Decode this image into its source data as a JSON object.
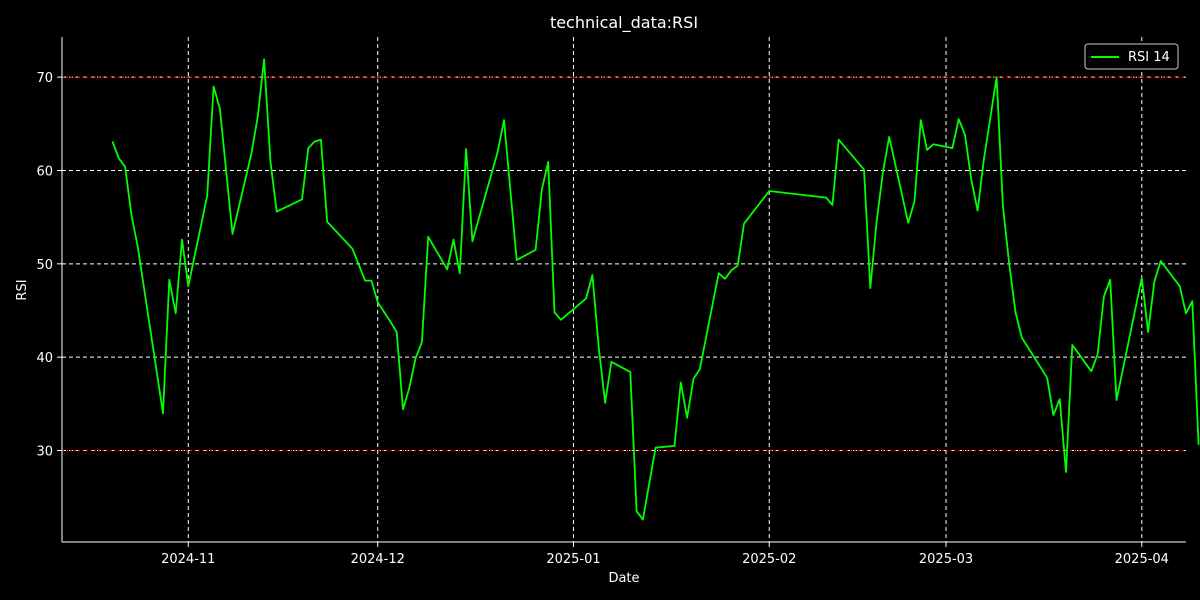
{
  "chart_data": {
    "type": "line",
    "title": "technical_data:RSI",
    "xlabel": "Date",
    "ylabel": "RSI",
    "xlim": [
      "2024-10-12",
      "2025-04-08"
    ],
    "ylim": [
      20.2,
      74.3
    ],
    "grid": true,
    "legend": {
      "placement": "top-right",
      "entries": [
        "RSI 14"
      ]
    },
    "x_ticks": [
      {
        "date": "2024-11-01",
        "label": "2024-11"
      },
      {
        "date": "2024-12-01",
        "label": "2024-12"
      },
      {
        "date": "2025-01-01",
        "label": "2025-01"
      },
      {
        "date": "2025-02-01",
        "label": "2025-02"
      },
      {
        "date": "2025-03-01",
        "label": "2025-03"
      },
      {
        "date": "2025-04-01",
        "label": "2025-04"
      }
    ],
    "y_ticks": [
      30,
      40,
      50,
      60,
      70
    ],
    "reference_lines": [
      {
        "value": 70,
        "color": "#ff0000",
        "style": "dotted"
      },
      {
        "value": 30,
        "color": "#ff0000",
        "style": "dotted"
      }
    ],
    "colors": {
      "background": "#000000",
      "line": "#00ff00",
      "grid": "#ffffff",
      "text": "#ffffff"
    },
    "series": [
      {
        "name": "RSI 14",
        "points": [
          [
            "2024-10-20",
            63.1
          ],
          [
            "2024-10-21",
            61.3
          ],
          [
            "2024-10-22",
            60.4
          ],
          [
            "2024-10-23",
            55.2
          ],
          [
            "2024-10-24",
            51.8
          ],
          [
            "2024-10-28",
            34.0
          ],
          [
            "2024-10-29",
            48.3
          ],
          [
            "2024-10-30",
            44.7
          ],
          [
            "2024-10-31",
            52.6
          ],
          [
            "2024-11-01",
            47.6
          ],
          [
            "2024-11-04",
            57.3
          ],
          [
            "2024-11-05",
            69.0
          ],
          [
            "2024-11-06",
            66.6
          ],
          [
            "2024-11-08",
            53.2
          ],
          [
            "2024-11-11",
            61.8
          ],
          [
            "2024-11-12",
            65.8
          ],
          [
            "2024-11-13",
            71.9
          ],
          [
            "2024-11-14",
            61.0
          ],
          [
            "2024-11-15",
            55.6
          ],
          [
            "2024-11-19",
            56.9
          ],
          [
            "2024-11-20",
            62.4
          ],
          [
            "2024-11-21",
            63.1
          ],
          [
            "2024-11-22",
            63.3
          ],
          [
            "2024-11-23",
            54.5
          ],
          [
            "2024-11-27",
            51.6
          ],
          [
            "2024-11-29",
            48.2
          ],
          [
            "2024-11-30",
            48.2
          ],
          [
            "2024-12-01",
            45.9
          ],
          [
            "2024-12-03",
            43.8
          ],
          [
            "2024-12-04",
            42.7
          ],
          [
            "2024-12-05",
            34.4
          ],
          [
            "2024-12-06",
            36.7
          ],
          [
            "2024-12-07",
            39.9
          ],
          [
            "2024-12-08",
            41.6
          ],
          [
            "2024-12-09",
            52.9
          ],
          [
            "2024-12-12",
            49.4
          ],
          [
            "2024-12-13",
            52.6
          ],
          [
            "2024-12-14",
            49.0
          ],
          [
            "2024-12-15",
            62.3
          ],
          [
            "2024-12-16",
            52.4
          ],
          [
            "2024-12-20",
            62.0
          ],
          [
            "2024-12-21",
            65.4
          ],
          [
            "2024-12-23",
            50.4
          ],
          [
            "2024-12-26",
            51.5
          ],
          [
            "2024-12-27",
            58.0
          ],
          [
            "2024-12-28",
            60.9
          ],
          [
            "2024-12-29",
            44.8
          ],
          [
            "2024-12-30",
            44.0
          ],
          [
            "2025-01-03",
            46.3
          ],
          [
            "2025-01-04",
            48.8
          ],
          [
            "2025-01-05",
            41.1
          ],
          [
            "2025-01-06",
            35.1
          ],
          [
            "2025-01-07",
            39.5
          ],
          [
            "2025-01-10",
            38.4
          ],
          [
            "2025-01-11",
            23.5
          ],
          [
            "2025-01-12",
            22.6
          ],
          [
            "2025-01-14",
            30.3
          ],
          [
            "2025-01-17",
            30.5
          ],
          [
            "2025-01-18",
            37.3
          ],
          [
            "2025-01-19",
            33.5
          ],
          [
            "2025-01-20",
            37.7
          ],
          [
            "2025-01-21",
            38.7
          ],
          [
            "2025-01-24",
            49.0
          ],
          [
            "2025-01-25",
            48.4
          ],
          [
            "2025-01-26",
            49.3
          ],
          [
            "2025-01-27",
            49.8
          ],
          [
            "2025-01-28",
            54.3
          ],
          [
            "2025-02-01",
            57.8
          ],
          [
            "2025-02-10",
            57.1
          ],
          [
            "2025-02-11",
            56.3
          ],
          [
            "2025-02-12",
            63.3
          ],
          [
            "2025-02-16",
            60.1
          ],
          [
            "2025-02-17",
            47.4
          ],
          [
            "2025-02-18",
            54.5
          ],
          [
            "2025-02-19",
            59.8
          ],
          [
            "2025-02-20",
            63.6
          ],
          [
            "2025-02-23",
            54.4
          ],
          [
            "2025-02-24",
            56.7
          ],
          [
            "2025-02-25",
            65.4
          ],
          [
            "2025-02-26",
            62.2
          ],
          [
            "2025-02-27",
            62.8
          ],
          [
            "2025-03-02",
            62.4
          ],
          [
            "2025-03-03",
            65.5
          ],
          [
            "2025-03-04",
            63.8
          ],
          [
            "2025-03-05",
            59.0
          ],
          [
            "2025-03-06",
            55.7
          ],
          [
            "2025-03-07",
            61.2
          ],
          [
            "2025-03-09",
            70.0
          ],
          [
            "2025-03-10",
            56.2
          ],
          [
            "2025-03-11",
            50.0
          ],
          [
            "2025-03-12",
            44.8
          ],
          [
            "2025-03-13",
            42.1
          ],
          [
            "2025-03-17",
            37.8
          ],
          [
            "2025-03-18",
            33.8
          ],
          [
            "2025-03-19",
            35.5
          ],
          [
            "2025-03-20",
            27.7
          ],
          [
            "2025-03-21",
            41.3
          ],
          [
            "2025-03-24",
            38.5
          ],
          [
            "2025-03-25",
            40.3
          ],
          [
            "2025-03-26",
            46.5
          ],
          [
            "2025-03-27",
            48.3
          ],
          [
            "2025-03-28",
            35.4
          ],
          [
            "2025-04-01",
            48.5
          ],
          [
            "2025-04-02",
            42.7
          ],
          [
            "2025-04-03",
            48.1
          ],
          [
            "2025-04-04",
            50.3
          ],
          [
            "2025-04-07",
            47.6
          ],
          [
            "2025-04-08",
            44.7
          ],
          [
            "2025-04-09",
            46.0
          ],
          [
            "2025-04-10",
            30.6
          ]
        ]
      }
    ]
  }
}
